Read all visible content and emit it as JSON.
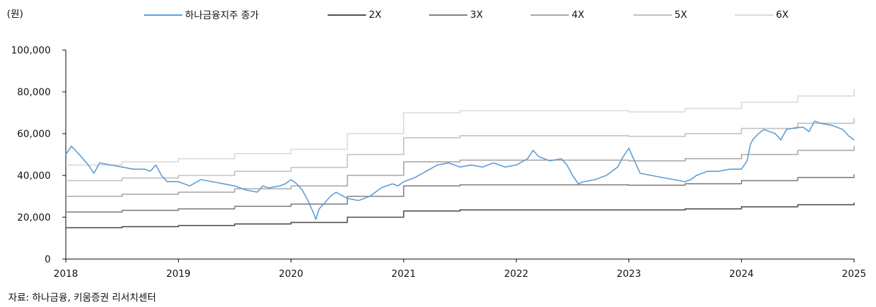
{
  "unit_label": "(원)",
  "source_label": "자료: 하나금융, 키움증권 리서치센터",
  "chart_data": {
    "type": "line",
    "ylim": [
      0,
      100000
    ],
    "xlim": [
      2018,
      2025
    ],
    "y_ticks": [
      "0",
      "20,000",
      "40,000",
      "60,000",
      "80,000",
      "100,000"
    ],
    "y_tick_values": [
      0,
      20000,
      40000,
      60000,
      80000,
      100000
    ],
    "x_ticks": [
      "2018",
      "2019",
      "2020",
      "2021",
      "2022",
      "2023",
      "2024",
      "2025"
    ],
    "x_tick_values": [
      2018,
      2019,
      2020,
      2021,
      2022,
      2023,
      2024,
      2025
    ],
    "grid": false,
    "legend_position": "top",
    "series": [
      {
        "name": "하나금융지주 종가",
        "color": "#5b9bd5",
        "x": [
          2018.0,
          2018.05,
          2018.12,
          2018.2,
          2018.25,
          2018.3,
          2018.4,
          2018.5,
          2018.6,
          2018.7,
          2018.75,
          2018.8,
          2018.85,
          2018.9,
          2019.0,
          2019.1,
          2019.2,
          2019.3,
          2019.4,
          2019.5,
          2019.6,
          2019.7,
          2019.75,
          2019.8,
          2019.9,
          2019.95,
          2020.0,
          2020.05,
          2020.1,
          2020.15,
          2020.2,
          2020.22,
          2020.25,
          2020.3,
          2020.35,
          2020.4,
          2020.5,
          2020.6,
          2020.7,
          2020.8,
          2020.9,
          2020.95,
          2021.0,
          2021.1,
          2021.2,
          2021.3,
          2021.4,
          2021.5,
          2021.6,
          2021.7,
          2021.8,
          2021.9,
          2022.0,
          2022.1,
          2022.15,
          2022.2,
          2022.3,
          2022.4,
          2022.45,
          2022.5,
          2022.55,
          2022.6,
          2022.7,
          2022.8,
          2022.9,
          2022.95,
          2023.0,
          2023.05,
          2023.1,
          2023.2,
          2023.3,
          2023.4,
          2023.5,
          2023.55,
          2023.6,
          2023.7,
          2023.8,
          2023.9,
          2024.0,
          2024.05,
          2024.08,
          2024.1,
          2024.15,
          2024.2,
          2024.3,
          2024.35,
          2024.4,
          2024.5,
          2024.55,
          2024.6,
          2024.65,
          2024.7,
          2024.8,
          2024.9,
          2024.95,
          2025.0
        ],
        "values": [
          50000,
          54000,
          50000,
          45000,
          41000,
          46000,
          45000,
          44000,
          43000,
          43000,
          42000,
          45000,
          40000,
          37000,
          37000,
          35000,
          38000,
          37000,
          36000,
          35000,
          33000,
          32000,
          35000,
          34000,
          35000,
          36000,
          38000,
          36000,
          33000,
          28000,
          22000,
          19000,
          24000,
          27000,
          30000,
          32000,
          29000,
          28000,
          30000,
          34000,
          36000,
          35000,
          37000,
          39000,
          42000,
          45000,
          46000,
          44000,
          45000,
          44000,
          46000,
          44000,
          45000,
          48000,
          52000,
          49000,
          47000,
          48000,
          45000,
          40000,
          36000,
          37000,
          38000,
          40000,
          44000,
          49000,
          53000,
          47000,
          41000,
          40000,
          39000,
          38000,
          37000,
          38000,
          40000,
          42000,
          42000,
          43000,
          43000,
          47000,
          55000,
          57000,
          60000,
          62000,
          60000,
          57000,
          62000,
          63000,
          63000,
          61000,
          66000,
          65000,
          64000,
          62000,
          59000,
          57000
        ]
      },
      {
        "name": "2X",
        "color": "#4d4d4d",
        "x": [
          2018.0,
          2018.5,
          2019.0,
          2019.5,
          2020.0,
          2020.5,
          2021.0,
          2021.5,
          2022.0,
          2022.5,
          2023.0,
          2023.5,
          2024.0,
          2024.5,
          2025.0
        ],
        "values": [
          15000,
          15500,
          16000,
          16800,
          17500,
          20000,
          23000,
          23500,
          23500,
          23500,
          23500,
          24000,
          25000,
          26000,
          27000
        ]
      },
      {
        "name": "3X",
        "color": "#7f7f7f",
        "x": [
          2018.0,
          2018.5,
          2019.0,
          2019.5,
          2020.0,
          2020.5,
          2021.0,
          2021.5,
          2022.0,
          2022.5,
          2023.0,
          2023.5,
          2024.0,
          2024.5,
          2025.0
        ],
        "values": [
          22500,
          23300,
          24000,
          25200,
          26300,
          30000,
          35000,
          35500,
          35500,
          35500,
          35300,
          36000,
          37500,
          39000,
          40500
        ]
      },
      {
        "name": "4X",
        "color": "#a6a6a6",
        "x": [
          2018.0,
          2018.5,
          2019.0,
          2019.5,
          2020.0,
          2020.5,
          2021.0,
          2021.5,
          2022.0,
          2022.5,
          2023.0,
          2023.5,
          2024.0,
          2024.5,
          2025.0
        ],
        "values": [
          30000,
          31000,
          32000,
          33600,
          35000,
          40000,
          46500,
          47300,
          47300,
          47300,
          47000,
          48000,
          50000,
          52000,
          54000
        ]
      },
      {
        "name": "5X",
        "color": "#c0c0c0",
        "x": [
          2018.0,
          2018.5,
          2019.0,
          2019.5,
          2020.0,
          2020.5,
          2021.0,
          2021.5,
          2022.0,
          2022.5,
          2023.0,
          2023.5,
          2024.0,
          2024.5,
          2025.0
        ],
        "values": [
          37500,
          38800,
          40000,
          42000,
          43800,
          50000,
          58000,
          59000,
          59000,
          59000,
          58700,
          60000,
          62500,
          65000,
          67500
        ]
      },
      {
        "name": "6X",
        "color": "#d9d9d9",
        "x": [
          2018.0,
          2018.5,
          2019.0,
          2019.5,
          2020.0,
          2020.5,
          2021.0,
          2021.5,
          2022.0,
          2022.5,
          2023.0,
          2023.5,
          2024.0,
          2024.5,
          2025.0
        ],
        "values": [
          45000,
          46500,
          48000,
          50400,
          52500,
          60000,
          70000,
          71000,
          71000,
          71000,
          70400,
          72000,
          75000,
          78000,
          81000
        ]
      }
    ]
  }
}
